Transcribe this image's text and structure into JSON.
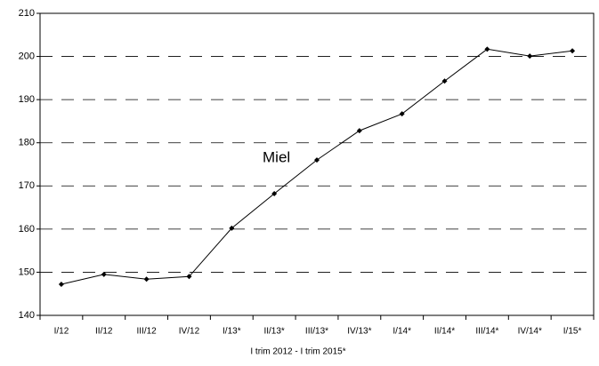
{
  "chart_data": {
    "type": "line",
    "categories": [
      "I/12",
      "II/12",
      "III/12",
      "IV/12",
      "I/13*",
      "II/13*",
      "III/13*",
      "IV/13*",
      "I/14*",
      "II/14*",
      "III/14*",
      "IV/14*",
      "I/15*"
    ],
    "series": [
      {
        "name": "Miel",
        "color": "#000000",
        "values": [
          147.2,
          149.5,
          148.4,
          149.0,
          160.2,
          168.2,
          176.0,
          182.8,
          186.7,
          194.3,
          201.7,
          200.1,
          201.3
        ]
      }
    ],
    "annotation": "Miel",
    "x_label": "I trim 2012 - I trim 2015*",
    "ylim": [
      140,
      210
    ],
    "yticks": [
      140,
      150,
      160,
      170,
      180,
      190,
      200,
      210
    ],
    "grid": true
  }
}
